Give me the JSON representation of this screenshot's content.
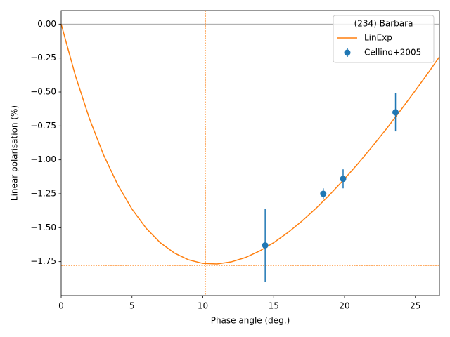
{
  "chart_data": {
    "type": "line",
    "x_label": "Phase angle (deg.)",
    "y_label": "Linear polarisation (%)",
    "xlim": [
      0,
      26.7
    ],
    "ylim": [
      -2.0,
      0.1
    ],
    "xticks": [
      0,
      5,
      10,
      15,
      20,
      25
    ],
    "yticks": [
      {
        "value": 0,
        "label": "0.00"
      },
      {
        "value": -0.25,
        "label": "−0.25"
      },
      {
        "value": -0.5,
        "label": "−0.50"
      },
      {
        "value": -0.75,
        "label": "−0.75"
      },
      {
        "value": -1.0,
        "label": "−1.00"
      },
      {
        "value": -1.25,
        "label": "−1.25"
      },
      {
        "value": -1.5,
        "label": "−1.50"
      },
      {
        "value": -1.75,
        "label": "−1.75"
      }
    ],
    "grid": false,
    "legend_title": "(234) Barbara",
    "legend_position": "upper right",
    "baseline": {
      "value": 0,
      "color": "#999999"
    },
    "reference_lines": {
      "x": 10.2,
      "y": -1.78,
      "color": "#ff7f0e"
    },
    "series": [
      {
        "name": "LinExp",
        "kind": "line",
        "color": "#ff7f0e",
        "x": [
          0,
          1,
          2,
          3,
          4,
          5,
          6,
          7,
          8,
          9,
          10,
          11,
          12,
          13,
          14,
          15,
          16,
          17,
          18,
          19,
          20,
          21,
          22,
          23,
          24,
          25,
          26,
          26.7
        ],
        "values": [
          0,
          -0.378,
          -0.698,
          -0.965,
          -1.185,
          -1.363,
          -1.504,
          -1.611,
          -1.687,
          -1.737,
          -1.763,
          -1.767,
          -1.752,
          -1.72,
          -1.672,
          -1.61,
          -1.536,
          -1.451,
          -1.356,
          -1.252,
          -1.14,
          -1.022,
          -0.896,
          -0.766,
          -0.629,
          -0.489,
          -0.345,
          -0.241
        ]
      },
      {
        "name": "Cellino+2005",
        "kind": "errorbar",
        "color": "#1f77b4",
        "x": [
          14.4,
          18.5,
          19.9,
          23.6
        ],
        "values": [
          -1.63,
          -1.25,
          -1.14,
          -0.65
        ],
        "errors": [
          0.27,
          0.04,
          0.07,
          0.14
        ]
      }
    ]
  }
}
